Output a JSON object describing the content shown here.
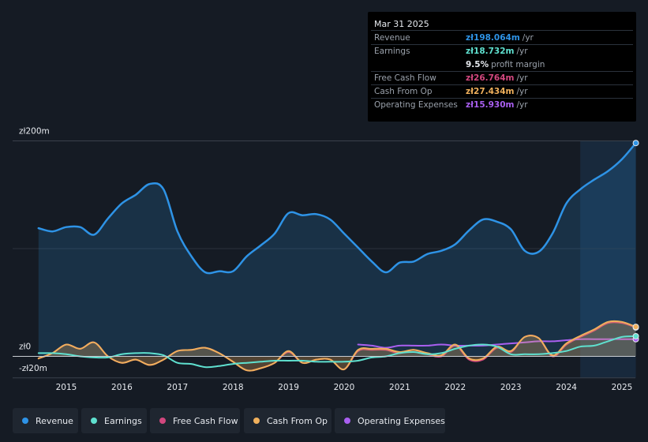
{
  "tooltip": {
    "date": "Mar 31 2025",
    "rows": [
      {
        "label": "Revenue",
        "value": "zł198.064m",
        "unit": "/yr",
        "color": "#2e93e6"
      },
      {
        "label": "Earnings",
        "value": "zł18.732m",
        "unit": "/yr",
        "color": "#5fe0cf"
      },
      {
        "label": "",
        "value": "9.5%",
        "unit": "profit margin",
        "color": "#e6e9ee"
      },
      {
        "label": "Free Cash Flow",
        "value": "zł26.764m",
        "unit": "/yr",
        "color": "#d2477e"
      },
      {
        "label": "Cash From Op",
        "value": "zł27.434m",
        "unit": "/yr",
        "color": "#f0b05c"
      },
      {
        "label": "Operating Expenses",
        "value": "zł15.930m",
        "unit": "/yr",
        "color": "#a95ff0"
      }
    ]
  },
  "legend": [
    {
      "label": "Revenue",
      "color": "#2e93e6"
    },
    {
      "label": "Earnings",
      "color": "#5fe0cf"
    },
    {
      "label": "Free Cash Flow",
      "color": "#d2477e"
    },
    {
      "label": "Cash From Op",
      "color": "#f0b05c"
    },
    {
      "label": "Operating Expenses",
      "color": "#a95ff0"
    }
  ],
  "chart_data": {
    "type": "area",
    "title": "",
    "xlabel": "",
    "ylabel": "",
    "ylim": [
      -20,
      200
    ],
    "xlim": [
      2014.48,
      2025.25
    ],
    "y_tick_labels": [
      "zł200m",
      "zł0",
      "-zł20m"
    ],
    "x_tick_labels": [
      "2015",
      "2016",
      "2017",
      "2018",
      "2019",
      "2020",
      "2021",
      "2022",
      "2023",
      "2024",
      "2025"
    ],
    "x_ticks": [
      2015,
      2016,
      2017,
      2018,
      2019,
      2020,
      2021,
      2022,
      2023,
      2024,
      2025
    ],
    "highlight_start": 2024.25,
    "series": [
      {
        "name": "Revenue",
        "color": "#2e93e6",
        "fill": true,
        "x": [
          2014.5,
          2014.75,
          2015.0,
          2015.25,
          2015.5,
          2015.75,
          2016.0,
          2016.25,
          2016.5,
          2016.75,
          2017.0,
          2017.25,
          2017.5,
          2017.75,
          2018.0,
          2018.25,
          2018.5,
          2018.75,
          2019.0,
          2019.25,
          2019.5,
          2019.75,
          2020.0,
          2020.25,
          2020.5,
          2020.75,
          2021.0,
          2021.25,
          2021.5,
          2021.75,
          2022.0,
          2022.25,
          2022.5,
          2022.75,
          2023.0,
          2023.25,
          2023.5,
          2023.75,
          2024.0,
          2024.25,
          2024.5,
          2024.75,
          2025.0,
          2025.25
        ],
        "values": [
          119,
          116,
          120,
          120,
          113,
          128,
          142,
          150,
          160,
          155,
          116,
          93,
          78,
          79,
          79,
          93,
          103,
          114,
          133,
          131,
          132,
          127,
          114,
          101,
          88,
          78,
          87,
          88,
          95,
          98,
          104,
          117,
          127,
          125,
          118,
          98,
          97,
          114,
          142,
          155,
          164,
          172,
          183,
          198
        ]
      },
      {
        "name": "Earnings",
        "color": "#5fe0cf",
        "fill": false,
        "x": [
          2014.5,
          2014.75,
          2015.0,
          2015.25,
          2015.5,
          2015.75,
          2016.0,
          2016.25,
          2016.5,
          2016.75,
          2017.0,
          2017.25,
          2017.5,
          2017.75,
          2018.0,
          2018.25,
          2018.5,
          2018.75,
          2019.0,
          2019.25,
          2019.5,
          2019.75,
          2020.0,
          2020.25,
          2020.5,
          2020.75,
          2021.0,
          2021.25,
          2021.5,
          2021.75,
          2022.0,
          2022.25,
          2022.5,
          2022.75,
          2023.0,
          2023.25,
          2023.5,
          2023.75,
          2024.0,
          2024.25,
          2024.5,
          2024.75,
          2025.0,
          2025.25
        ],
        "values": [
          3,
          3,
          2,
          0,
          -1,
          -1,
          2,
          3,
          3,
          1,
          -6,
          -7,
          -10,
          -9,
          -7,
          -6,
          -5,
          -4,
          -4,
          -4,
          -5,
          -5,
          -5,
          -4,
          -1,
          0,
          3,
          4,
          2,
          3,
          7,
          10,
          11,
          9,
          2,
          2,
          2,
          3,
          5,
          9,
          10,
          14,
          18,
          18.7
        ]
      },
      {
        "name": "Free Cash Flow",
        "color": "#d2477e",
        "fill": false,
        "x": [
          2014.5,
          2014.75,
          2015.0,
          2015.25,
          2015.5,
          2015.75,
          2016.0,
          2016.25,
          2016.5,
          2016.75,
          2017.0,
          2017.25,
          2017.5,
          2017.75,
          2018.0,
          2018.25,
          2018.5,
          2018.75,
          2019.0,
          2019.25,
          2019.5,
          2019.75,
          2020.0,
          2020.25,
          2020.5,
          2020.75,
          2021.0,
          2021.25,
          2021.5,
          2021.75,
          2022.0,
          2022.25,
          2022.5,
          2022.75,
          2023.0,
          2023.25,
          2023.5,
          2023.75,
          2024.0,
          2024.25,
          2024.5,
          2024.75,
          2025.0,
          2025.25
        ],
        "values": [
          -2,
          3,
          11,
          7,
          13,
          0,
          -6,
          -3,
          -8,
          -3,
          5,
          6,
          8,
          3,
          -5,
          -13,
          -11,
          -6,
          4,
          -6,
          -3,
          -3,
          -12,
          5,
          6,
          6,
          3,
          6,
          2,
          0,
          10,
          -3,
          -3,
          8,
          4,
          18,
          17,
          0,
          11,
          18,
          24,
          31,
          31,
          26.8
        ]
      },
      {
        "name": "Cash From Op",
        "color": "#f0b05c",
        "fill": true,
        "x": [
          2014.5,
          2014.75,
          2015.0,
          2015.25,
          2015.5,
          2015.75,
          2016.0,
          2016.25,
          2016.5,
          2016.75,
          2017.0,
          2017.25,
          2017.5,
          2017.75,
          2018.0,
          2018.25,
          2018.5,
          2018.75,
          2019.0,
          2019.25,
          2019.5,
          2019.75,
          2020.0,
          2020.25,
          2020.5,
          2020.75,
          2021.0,
          2021.25,
          2021.5,
          2021.75,
          2022.0,
          2022.25,
          2022.5,
          2022.75,
          2023.0,
          2023.25,
          2023.5,
          2023.75,
          2024.0,
          2024.25,
          2024.5,
          2024.75,
          2025.0,
          2025.25
        ],
        "values": [
          -2,
          3,
          11,
          7,
          13,
          0,
          -6,
          -3,
          -8,
          -3,
          5,
          6,
          8,
          3,
          -5,
          -13,
          -11,
          -6,
          5,
          -6,
          -3,
          -3,
          -12,
          6,
          7,
          7,
          4,
          6,
          3,
          1,
          11,
          -2,
          -2,
          9,
          5,
          18,
          17,
          1,
          12,
          19,
          25,
          32,
          32,
          27.4
        ]
      },
      {
        "name": "Operating Expenses",
        "color": "#a95ff0",
        "fill": false,
        "x": [
          2020.25,
          2020.5,
          2020.75,
          2021.0,
          2021.25,
          2021.5,
          2021.75,
          2022.0,
          2022.25,
          2022.5,
          2022.75,
          2023.0,
          2023.25,
          2023.5,
          2023.75,
          2024.0,
          2024.25,
          2024.5,
          2024.75,
          2025.0,
          2025.25
        ],
        "values": [
          11,
          10,
          8,
          10,
          10,
          10,
          11,
          10,
          10,
          10,
          11,
          12,
          13,
          14,
          14,
          15,
          16,
          16,
          16,
          16,
          15.9
        ]
      }
    ]
  }
}
